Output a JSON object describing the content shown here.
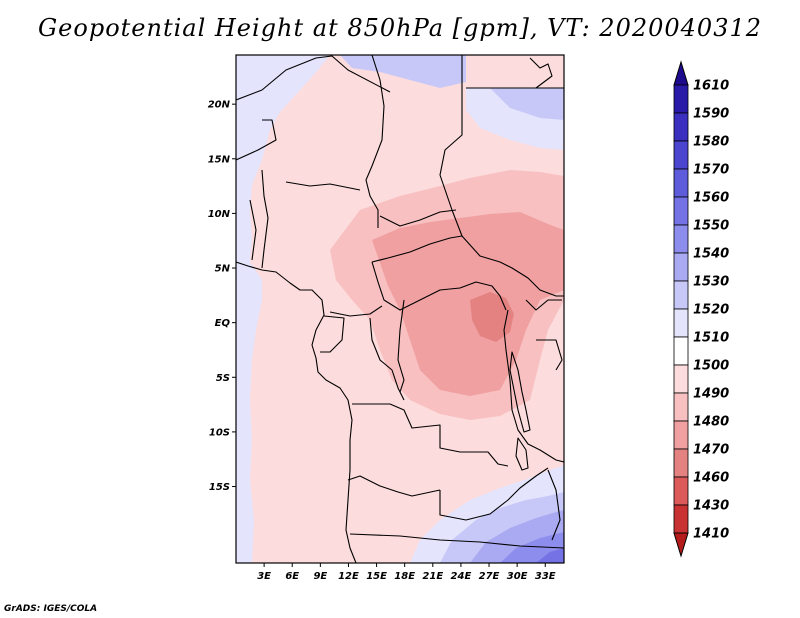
{
  "title": "Geopotential Height at 850hPa [gpm], VT: 2020040312",
  "credit": "GrADS: IGES/COLA",
  "map": {
    "lon_range": [
      0,
      35
    ],
    "lat_range": [
      -22,
      24.5
    ],
    "lat_ticks": [
      {
        "value": 20,
        "label": "20N"
      },
      {
        "value": 15,
        "label": "15N"
      },
      {
        "value": 10,
        "label": "10N"
      },
      {
        "value": 5,
        "label": "5N"
      },
      {
        "value": 0,
        "label": "EQ"
      },
      {
        "value": -5,
        "label": "5S"
      },
      {
        "value": -10,
        "label": "10S"
      },
      {
        "value": -15,
        "label": "15S"
      }
    ],
    "lon_ticks": [
      {
        "value": 3,
        "label": "3E"
      },
      {
        "value": 6,
        "label": "6E"
      },
      {
        "value": 9,
        "label": "9E"
      },
      {
        "value": 12,
        "label": "12E"
      },
      {
        "value": 15,
        "label": "15E"
      },
      {
        "value": 18,
        "label": "18E"
      },
      {
        "value": 21,
        "label": "21E"
      },
      {
        "value": 24,
        "label": "24E"
      },
      {
        "value": 27,
        "label": "27E"
      },
      {
        "value": 30,
        "label": "30E"
      },
      {
        "value": 33,
        "label": "33E"
      }
    ]
  },
  "colorbar": {
    "levels": [
      "1610",
      "1590",
      "1580",
      "1570",
      "1560",
      "1550",
      "1540",
      "1530",
      "1520",
      "1510",
      "1500",
      "1490",
      "1480",
      "1470",
      "1460",
      "1430",
      "1410"
    ],
    "colors": [
      "#1e0a8c",
      "#2a1aa8",
      "#3a2fbf",
      "#4b45cf",
      "#5e5cdb",
      "#7472e4",
      "#8d8ded",
      "#aaaaf3",
      "#c8c8f8",
      "#e4e4fc",
      "#ffffff",
      "#fcdcdc",
      "#f8c0c0",
      "#f0a0a0",
      "#e48282",
      "#dc5a5a",
      "#c83232",
      "#b41c1c"
    ]
  },
  "fields": {
    "colors": {
      "c1510": "#e4e4fc",
      "c1520": "#c8c8f8",
      "c1530": "#aaaaf3",
      "c1540": "#8d8ded",
      "c1550": "#7472e4",
      "c1490": "#fcdcdc",
      "c1480": "#f8c0c0",
      "c1470": "#f0a0a0",
      "c1460": "#e48282"
    }
  }
}
